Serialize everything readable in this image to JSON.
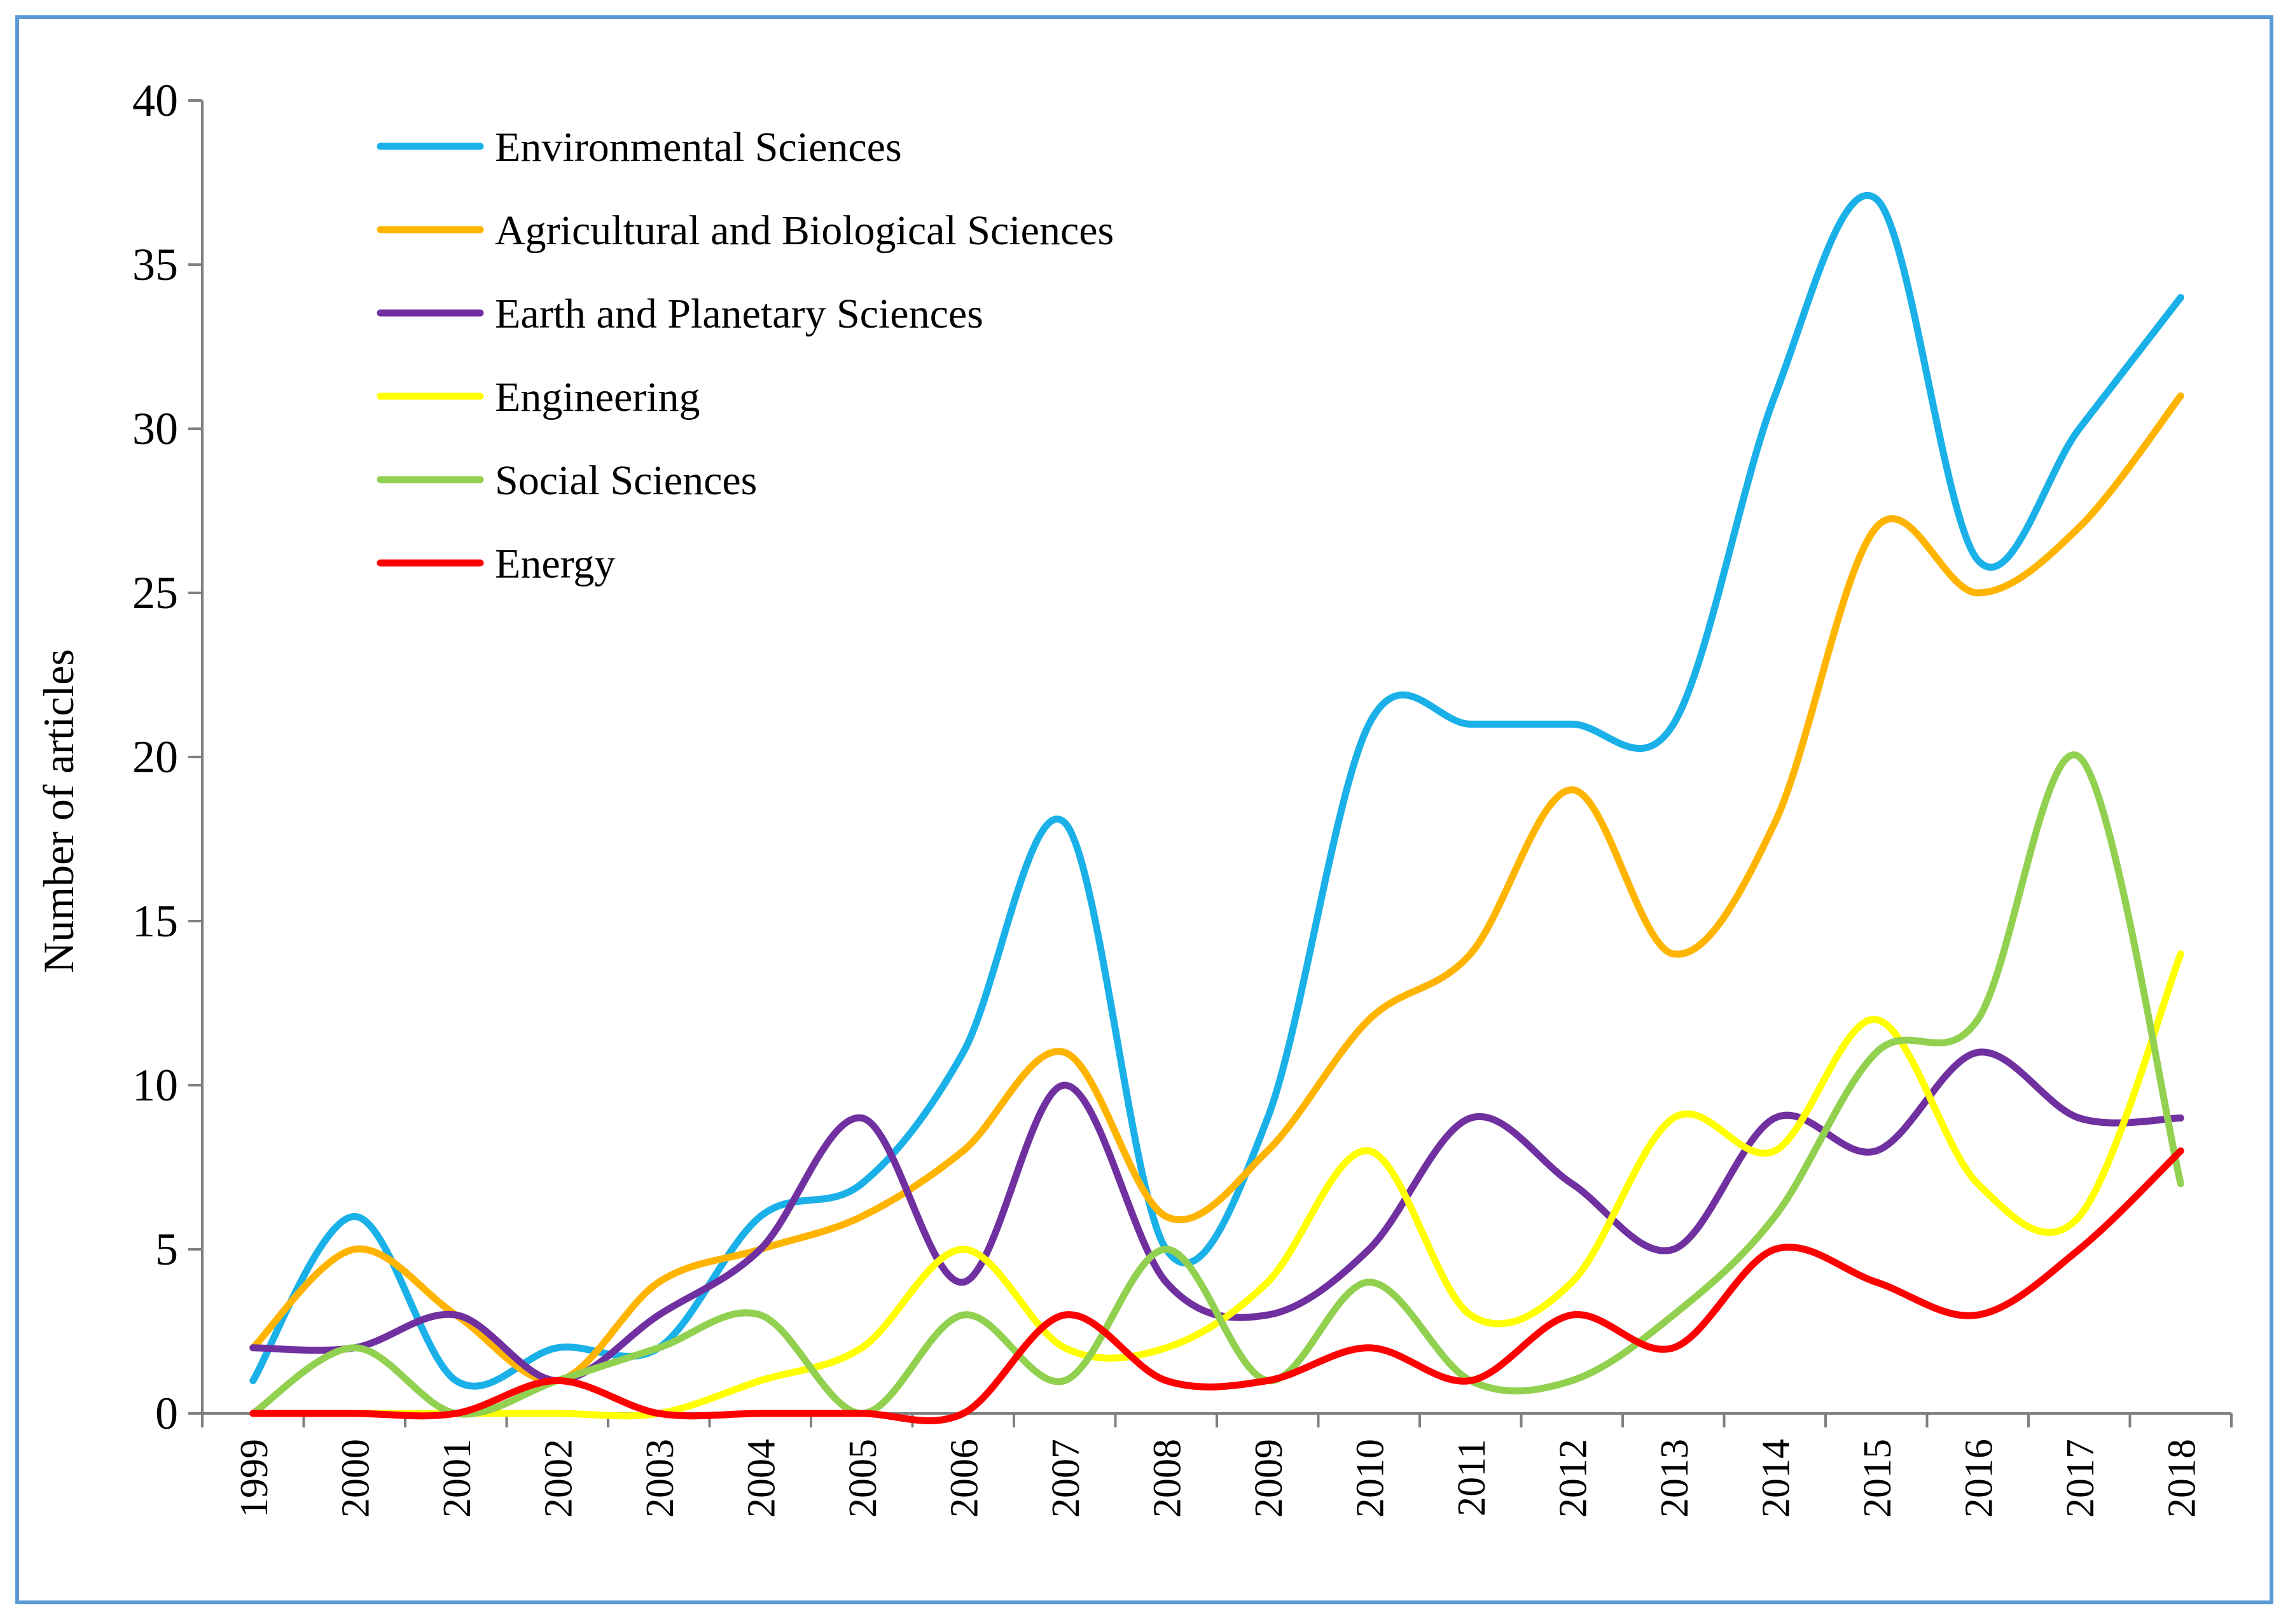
{
  "chart_data": {
    "type": "line",
    "title": "",
    "xlabel": "",
    "ylabel": "Number of articles",
    "ylim": [
      0,
      40
    ],
    "yticks": [
      "0",
      "5",
      "10",
      "15",
      "20",
      "25",
      "30",
      "35",
      "40"
    ],
    "categories": [
      "1999",
      "2000",
      "2001",
      "2002",
      "2003",
      "2004",
      "2005",
      "2006",
      "2007",
      "2008",
      "2009",
      "2010",
      "2011",
      "2012",
      "2013",
      "2014",
      "2015",
      "2016",
      "2017",
      "2018"
    ],
    "legend_position": "top-left",
    "series": [
      {
        "name": "Environmental Sciences",
        "color": "#1ab0e8",
        "values": [
          1,
          6,
          1,
          2,
          2,
          6,
          7,
          11,
          18,
          5,
          9,
          21,
          21,
          21,
          21,
          31,
          37,
          26,
          30,
          34
        ]
      },
      {
        "name": "Agricultural and Biological Sciences",
        "color": "#ffb400",
        "values": [
          2,
          5,
          3,
          1,
          4,
          5,
          6,
          8,
          11,
          6,
          8,
          12,
          14,
          19,
          14,
          18,
          27,
          25,
          27,
          31
        ]
      },
      {
        "name": "Earth and Planetary Sciences",
        "color": "#7030a0",
        "values": [
          2,
          2,
          3,
          1,
          3,
          5,
          9,
          4,
          10,
          4,
          3,
          5,
          9,
          7,
          5,
          9,
          8,
          11,
          9,
          9
        ]
      },
      {
        "name": "Engineering",
        "color": "#ffff00",
        "values": [
          0,
          0,
          0,
          0,
          0,
          1,
          2,
          5,
          2,
          2,
          4,
          8,
          3,
          4,
          9,
          8,
          12,
          7,
          6,
          14
        ]
      },
      {
        "name": "Social Sciences",
        "color": "#92d050",
        "values": [
          0,
          2,
          0,
          1,
          2,
          3,
          0,
          3,
          1,
          5,
          1,
          4,
          1,
          1,
          3,
          6,
          11,
          12,
          20,
          7
        ]
      },
      {
        "name": "Energy",
        "color": "#ff0000",
        "values": [
          0,
          0,
          0,
          1,
          0,
          0,
          0,
          0,
          3,
          1,
          1,
          2,
          1,
          3,
          2,
          5,
          4,
          3,
          5,
          8
        ]
      }
    ]
  }
}
